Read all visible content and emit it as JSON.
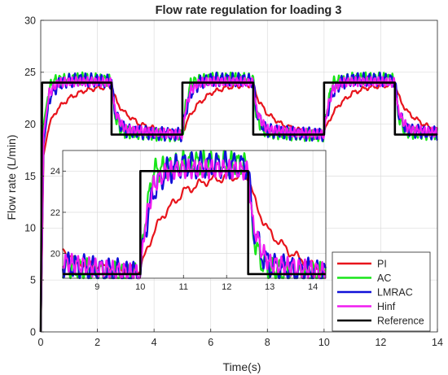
{
  "chart_data": [
    {
      "type": "line",
      "title": "Flow rate regulation for loading 3",
      "xlabel": "Time(s)",
      "ylabel": "Flow rate (L/min)",
      "xlim": [
        0,
        14
      ],
      "ylim": [
        0,
        30
      ],
      "xticks": [
        0,
        2,
        4,
        6,
        8,
        10,
        12,
        14
      ],
      "yticks": [
        0,
        5,
        10,
        15,
        20,
        25,
        30
      ],
      "grid": true,
      "legend_position": "bottom-right",
      "colors": {
        "PI": "#e8141c",
        "AC": "#19e51a",
        "LMRAC": "#1010d8",
        "Hinf": "#f01cf0",
        "Reference": "#000000"
      },
      "reference_steps": {
        "t": [
          0,
          2.5,
          5,
          7.5,
          10,
          12.5,
          14
        ],
        "y": [
          24,
          19,
          24,
          19,
          24,
          19,
          19
        ]
      },
      "series": [
        {
          "name": "PI",
          "x": [
            0,
            0.1,
            0.3,
            0.6,
            1.0,
            1.5,
            2.0,
            2.5,
            2.7,
            3.0,
            3.5,
            4.0,
            4.5,
            5.0,
            5.2,
            5.5,
            6.0,
            6.5,
            7.0,
            7.5,
            7.7,
            8.0,
            8.5,
            9.0,
            9.5,
            10.0,
            10.2,
            10.5,
            11.0,
            11.5,
            12.0,
            12.5,
            12.7,
            13.0,
            13.5,
            14.0
          ],
          "y": [
            0,
            17,
            20,
            21.5,
            22.5,
            23.2,
            23.5,
            23.6,
            22,
            21,
            20,
            19.6,
            19.3,
            19.2,
            20.5,
            21.8,
            23,
            23.5,
            23.7,
            23.8,
            22.2,
            21,
            20,
            19.5,
            19.3,
            19.2,
            20.5,
            21.8,
            23,
            23.5,
            23.7,
            23.8,
            22.2,
            21,
            20,
            19.4
          ]
        },
        {
          "name": "AC",
          "x": [
            0,
            0.1,
            0.3,
            0.5,
            1.0,
            1.5,
            2.0,
            2.5,
            2.6,
            2.8,
            3.0,
            4.0,
            5.0,
            5.1,
            5.3,
            6.0,
            7.0,
            7.5,
            7.6,
            7.8,
            8.0,
            9.0,
            10.0,
            10.1,
            10.3,
            11.0,
            12.0,
            12.5,
            12.6,
            12.8,
            13.0,
            14.0
          ],
          "y": [
            0,
            20,
            23.5,
            24.2,
            24.3,
            24.4,
            24.3,
            24.2,
            21,
            19.6,
            19.2,
            19,
            18.9,
            21.5,
            24,
            24.4,
            24.4,
            24.3,
            21,
            19.6,
            19.2,
            19,
            18.9,
            21.5,
            24,
            24.4,
            24.4,
            24.3,
            21,
            19.6,
            19.2,
            19
          ]
        },
        {
          "name": "LMRAC",
          "x": [
            0,
            0.1,
            0.3,
            0.6,
            1.0,
            1.5,
            2.0,
            2.5,
            2.6,
            2.8,
            3.0,
            4.0,
            5.0,
            5.1,
            5.3,
            5.6,
            6.0,
            7.0,
            7.5,
            7.6,
            7.8,
            8.0,
            9.0,
            10.0,
            10.1,
            10.3,
            10.6,
            11.0,
            12.0,
            12.5,
            12.6,
            12.8,
            13.0,
            14.0
          ],
          "y": [
            0,
            18,
            22.5,
            23.8,
            24.2,
            24.3,
            24.2,
            24.1,
            21.5,
            20,
            19.4,
            19.1,
            19,
            21,
            23,
            24,
            24.3,
            24.3,
            24.2,
            21.5,
            20,
            19.4,
            19.1,
            19,
            21,
            23,
            24,
            24.3,
            24.3,
            24.2,
            21.5,
            20,
            19.4,
            19.1
          ]
        },
        {
          "name": "Hinf",
          "x": [
            0,
            0.1,
            0.3,
            0.6,
            1.0,
            1.5,
            2.0,
            2.5,
            2.6,
            2.8,
            3.0,
            4.0,
            5.0,
            5.1,
            5.3,
            5.6,
            6.0,
            7.0,
            7.5,
            7.6,
            7.8,
            8.0,
            9.0,
            10.0,
            10.1,
            10.3,
            10.6,
            11.0,
            12.0,
            12.5,
            12.6,
            12.8,
            13.0,
            14.0
          ],
          "y": [
            0,
            19,
            23,
            24,
            24.1,
            24.1,
            24.1,
            24,
            21.5,
            20.2,
            19.5,
            19.2,
            19,
            21.3,
            23.3,
            24,
            24.1,
            24.1,
            24,
            21.5,
            20.2,
            19.5,
            19.2,
            19,
            21.3,
            23.3,
            24,
            24.1,
            24.1,
            24,
            21.5,
            20.2,
            19.5,
            19.2
          ]
        },
        {
          "name": "Reference",
          "x": [
            0,
            0.05,
            2.5,
            2.5,
            5,
            5,
            7.5,
            7.5,
            10,
            10,
            12.5,
            12.5,
            14
          ],
          "y": [
            0,
            24,
            24,
            19,
            19,
            24,
            24,
            19,
            19,
            24,
            24,
            19,
            19
          ]
        }
      ]
    },
    {
      "type": "line",
      "title": "",
      "xlabel": "",
      "ylabel": "",
      "xlim": [
        8.2,
        14.3
      ],
      "ylim": [
        18.8,
        25
      ],
      "xticks": [
        9,
        10,
        11,
        12,
        13,
        14
      ],
      "yticks": [
        20,
        22,
        24
      ],
      "grid": true,
      "series": [
        {
          "name": "PI",
          "x": [
            8.2,
            8.5,
            9.0,
            9.5,
            10.0,
            10.2,
            10.5,
            11.0,
            11.5,
            12.0,
            12.5,
            12.7,
            13.0,
            13.5,
            14.0,
            14.3
          ],
          "y": [
            20.2,
            19.6,
            19.4,
            19.3,
            19.2,
            20.5,
            21.8,
            23,
            23.5,
            23.7,
            23.8,
            22.2,
            21,
            20,
            19.4,
            19.3
          ]
        },
        {
          "name": "AC",
          "x": [
            8.2,
            9.0,
            10.0,
            10.1,
            10.3,
            11.0,
            12.0,
            12.5,
            12.6,
            12.8,
            13.0,
            14.0,
            14.3
          ],
          "y": [
            19.4,
            19.1,
            18.9,
            21.5,
            24,
            24.4,
            24.4,
            24.3,
            21,
            19.6,
            19.2,
            19,
            19
          ]
        },
        {
          "name": "LMRAC",
          "x": [
            8.2,
            9.0,
            10.0,
            10.1,
            10.3,
            10.6,
            11.0,
            12.0,
            12.5,
            12.6,
            12.8,
            13.0,
            14.0,
            14.3
          ],
          "y": [
            19.5,
            19.2,
            19,
            21,
            23,
            24,
            24.3,
            24.3,
            24.2,
            21.5,
            20,
            19.4,
            19.1,
            19
          ]
        },
        {
          "name": "Hinf",
          "x": [
            8.2,
            9.0,
            10.0,
            10.1,
            10.3,
            10.6,
            11.0,
            12.0,
            12.5,
            12.6,
            12.8,
            13.0,
            14.0,
            14.3
          ],
          "y": [
            19.6,
            19.3,
            19,
            21.3,
            23.3,
            24,
            24.1,
            24.1,
            24,
            21.5,
            20.2,
            19.5,
            19.2,
            19.1
          ]
        },
        {
          "name": "Reference",
          "x": [
            8.2,
            10,
            10,
            12.5,
            12.5,
            14.3
          ],
          "y": [
            19,
            19,
            24,
            24,
            19,
            19
          ]
        }
      ]
    }
  ]
}
